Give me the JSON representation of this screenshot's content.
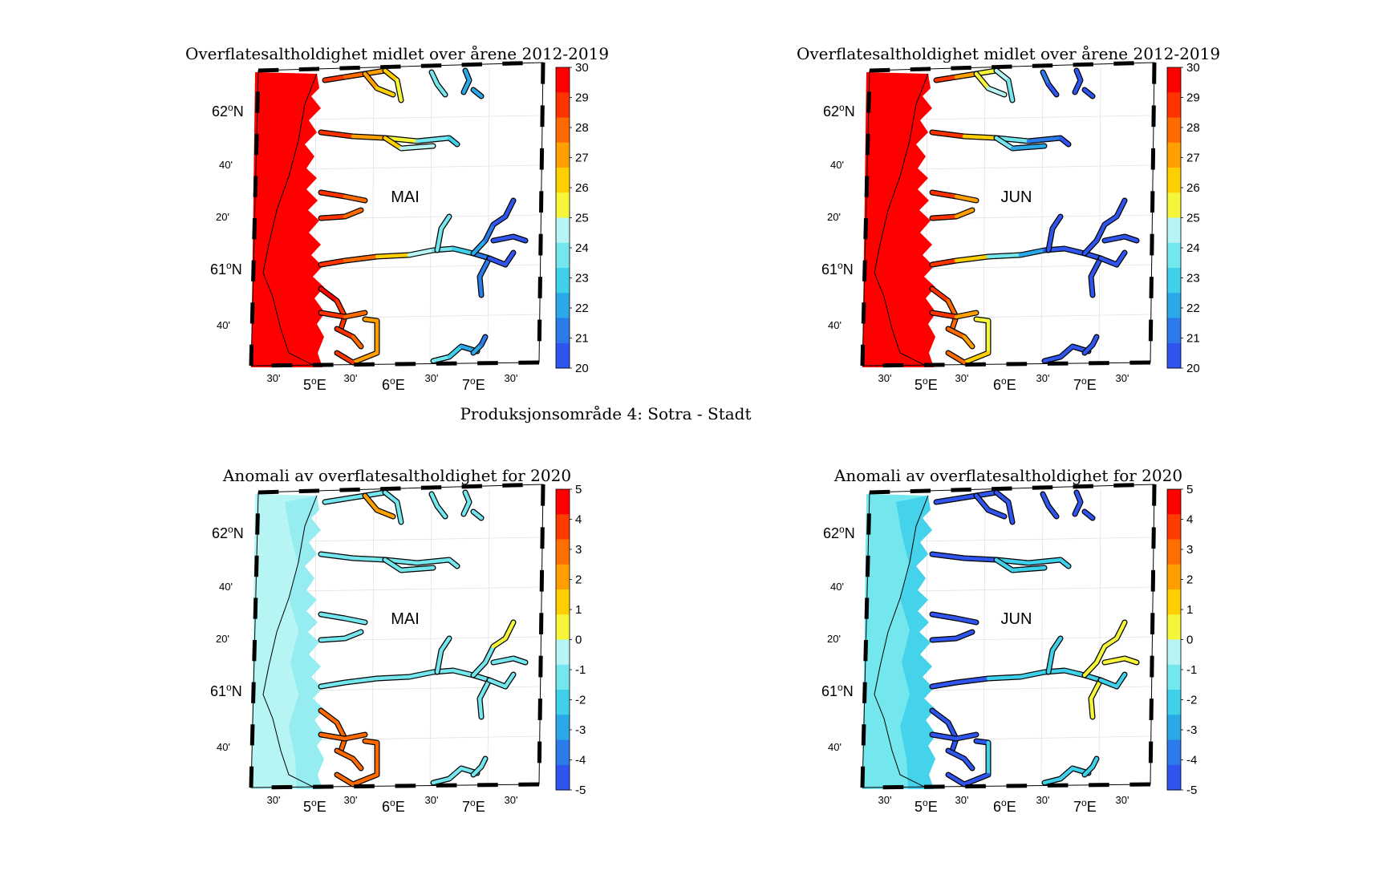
{
  "figure_title": "Produksjonsområde 4: Sotra - Stadt",
  "chart_data": [
    {
      "type": "heatmap",
      "variable": "salinity_mean",
      "month": "MAI",
      "title": "Overflatesaltholdighet midlet over årene 2012-2019",
      "colorbar": {
        "min": 20,
        "max": 30,
        "ticks": [
          "30",
          "29",
          "28",
          "27",
          "26",
          "25",
          "24",
          "23",
          "22",
          "21",
          "20"
        ]
      },
      "lat_ticks": [
        "62°N",
        "40'",
        "20'",
        "61°N",
        "40'"
      ],
      "lon_ticks": [
        "30'",
        "5°E",
        "30'",
        "6°E",
        "30'",
        "7°E",
        "30'"
      ],
      "deg_lat_62": "62",
      "deg_lat_61": "61",
      "deg_lon_5": "5",
      "deg_lon_6": "6",
      "deg_lon_7": "7",
      "deg_symbol": "o",
      "north": "N",
      "east": "E"
    },
    {
      "type": "heatmap",
      "variable": "salinity_mean",
      "month": "JUN",
      "title": "Overflatesaltholdighet midlet over årene 2012-2019",
      "colorbar": {
        "min": 20,
        "max": 30,
        "ticks": [
          "30",
          "29",
          "28",
          "27",
          "26",
          "25",
          "24",
          "23",
          "22",
          "21",
          "20"
        ]
      }
    },
    {
      "type": "heatmap",
      "variable": "salinity_anomaly",
      "month": "MAI",
      "title": "Anomali av overflatesaltholdighet for 2020",
      "colorbar": {
        "min": -5,
        "max": 5,
        "ticks": [
          "5",
          "4",
          "3",
          "2",
          "1",
          "0",
          "-1",
          "-2",
          "-3",
          "-4",
          "-5"
        ]
      }
    },
    {
      "type": "heatmap",
      "variable": "salinity_anomaly",
      "month": "JUN",
      "title": "Anomali av overflatesaltholdighet for 2020",
      "colorbar": {
        "min": -5,
        "max": 5,
        "ticks": [
          "5",
          "4",
          "3",
          "2",
          "1",
          "0",
          "-1",
          "-2",
          "-3",
          "-4",
          "-5"
        ]
      }
    }
  ],
  "axes_labels": {
    "lat": [
      "62",
      "40'",
      "20'",
      "61",
      "40'"
    ],
    "lon": [
      "30'",
      "5",
      "30'",
      "6",
      "30'",
      "7",
      "30'"
    ],
    "deg": "o",
    "N": "N",
    "E": "E"
  },
  "colors": {
    "sal": [
      "#ff0000",
      "#ff3300",
      "#ff6a00",
      "#ff9f00",
      "#ffd000",
      "#f5f53a",
      "#b7f5f5",
      "#73e6ee",
      "#3fd0ea",
      "#2aa8e8",
      "#2b7cea",
      "#2f55ee"
    ],
    "coast_line": "#000000"
  }
}
